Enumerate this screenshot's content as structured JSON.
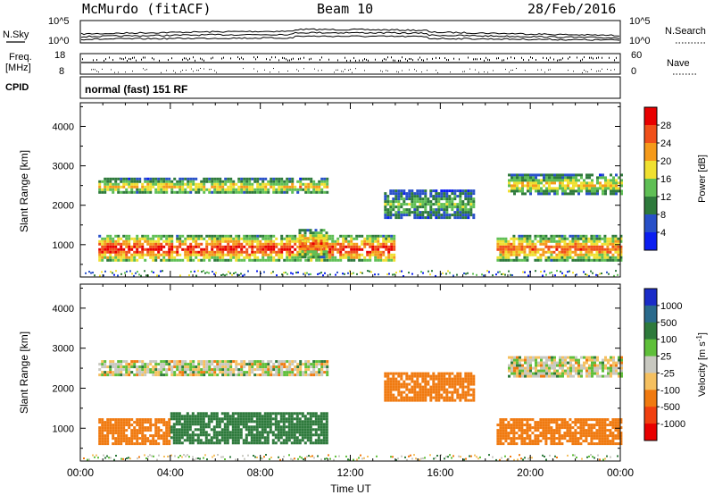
{
  "header": {
    "station": "McMurdo (fitACF)",
    "beam": "Beam 10",
    "date": "28/Feb/2016"
  },
  "noise_panel": {
    "left_label": "N.Sky",
    "right_label": "N.Search",
    "left_ticks": [
      "10^5",
      "10^0"
    ],
    "right_ticks": [
      "10^5",
      "10^0"
    ]
  },
  "freq_panel": {
    "left_label_1": "Freq.",
    "left_label_2": "[MHz]",
    "left_ticks": [
      "18",
      "8"
    ],
    "right_label": "Nave",
    "right_ticks": [
      "60",
      "0"
    ]
  },
  "cpid_panel": {
    "label": "CPID",
    "text": "normal (fast) 151 RF"
  },
  "chart_data": [
    {
      "type": "heatmap",
      "quantity": "Power",
      "ylabel": "Slant Range [km]",
      "xlabel": "",
      "ylim": [
        180,
        4600
      ],
      "xlim_hours": [
        0,
        24
      ],
      "yticks": [
        1000,
        2000,
        3000,
        4000
      ],
      "colorbar": {
        "label": "Power [dB]",
        "ticks": [
          4,
          8,
          12,
          16,
          20,
          24,
          28
        ],
        "range": [
          0,
          32
        ],
        "colors": [
          "#0b1ef0",
          "#2850c8",
          "#2e7a3c",
          "#5fbf55",
          "#f0e030",
          "#f59a1a",
          "#f0501a",
          "#e80000"
        ]
      },
      "echo_regions": [
        {
          "t": [
            0.8,
            14.0
          ],
          "r": [
            600,
            1250
          ],
          "level": 25
        },
        {
          "t": [
            9.7,
            11.0
          ],
          "r": [
            700,
            1400
          ],
          "level": 22
        },
        {
          "t": [
            0.8,
            11.0
          ],
          "r": [
            2300,
            2700
          ],
          "level": 17
        },
        {
          "t": [
            13.5,
            17.5
          ],
          "r": [
            1700,
            2400
          ],
          "level": 12
        },
        {
          "t": [
            18.5,
            24.0
          ],
          "r": [
            600,
            1250
          ],
          "level": 22
        },
        {
          "t": [
            19.0,
            24.0
          ],
          "r": [
            2300,
            2800
          ],
          "level": 17
        }
      ]
    },
    {
      "type": "heatmap",
      "quantity": "Velocity",
      "ylabel": "Slant Range [km]",
      "xlabel": "Time UT",
      "ylim": [
        180,
        4600
      ],
      "xlim_hours": [
        0,
        24
      ],
      "yticks": [
        1000,
        2000,
        3000,
        4000
      ],
      "xticks": [
        "00:00",
        "04:00",
        "08:00",
        "12:00",
        "16:00",
        "20:00",
        "00:00"
      ],
      "colorbar": {
        "label": "Velocity [m s-1]",
        "label_main": "Velocity [m s",
        "label_sup": "-1",
        "label_end": "]",
        "ticks": [
          1000,
          500,
          100,
          25,
          -25,
          -100,
          -500,
          -1000
        ],
        "colors": [
          "#1a2cc8",
          "#2a6a8c",
          "#2e7a3c",
          "#5fbf3a",
          "#c8c8c0",
          "#f5c060",
          "#f07a10",
          "#f04010",
          "#e80000"
        ]
      },
      "echo_regions": [
        {
          "t": [
            0.8,
            4.0
          ],
          "r": [
            600,
            1250
          ],
          "velocity": -150
        },
        {
          "t": [
            4.0,
            11.0
          ],
          "r": [
            600,
            1400
          ],
          "velocity": 150
        },
        {
          "t": [
            0.8,
            11.0
          ],
          "r": [
            2300,
            2700
          ],
          "velocity": 0
        },
        {
          "t": [
            13.5,
            17.5
          ],
          "r": [
            1700,
            2400
          ],
          "velocity": -200
        },
        {
          "t": [
            18.5,
            24.0
          ],
          "r": [
            600,
            1250
          ],
          "velocity": -150
        },
        {
          "t": [
            19.0,
            24.0
          ],
          "r": [
            2300,
            2800
          ],
          "velocity": 0
        }
      ]
    }
  ]
}
